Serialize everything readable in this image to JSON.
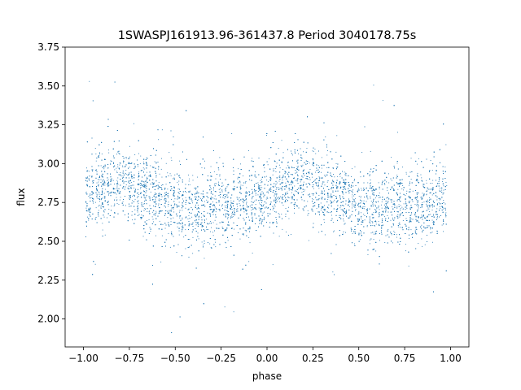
{
  "chart_data": {
    "type": "scatter",
    "title": "1SWASPJ161913.96-361437.8 Period 3040178.75s",
    "xlabel": "phase",
    "ylabel": "flux",
    "xlim": [
      -1.1,
      1.1
    ],
    "ylim": [
      1.82,
      3.75
    ],
    "xticks": [
      -1.0,
      -0.75,
      -0.5,
      -0.25,
      0.0,
      0.25,
      0.5,
      0.75,
      1.0
    ],
    "xtick_labels": [
      "−1.00",
      "−0.75",
      "−0.50",
      "−0.25",
      "0.00",
      "0.25",
      "0.50",
      "0.75",
      "1.00"
    ],
    "yticks": [
      2.0,
      2.25,
      2.5,
      2.75,
      3.0,
      3.25,
      3.5,
      3.75
    ],
    "ytick_labels": [
      "2.00",
      "2.25",
      "2.50",
      "2.75",
      "3.00",
      "3.25",
      "3.50",
      "3.75"
    ],
    "grid": false,
    "marker_color": "#1f77b4",
    "series": [
      {
        "description_of_points": "phase-folded light curve; dense vertical strips of points spanning phase -1 to 1, flux mostly 2.5-3.05, mean flux modulated with peaks near phase -0.8 and 0.2 and troughs near -0.4 and 0.6",
        "mean_flux_profile": {
          "phase": [
            -1.0,
            -0.9,
            -0.8,
            -0.7,
            -0.6,
            -0.5,
            -0.4,
            -0.3,
            -0.2,
            -0.1,
            0.0,
            0.1,
            0.2,
            0.3,
            0.4,
            0.5,
            0.6,
            0.7,
            0.8,
            0.9,
            1.0
          ],
          "flux": [
            2.8,
            2.84,
            2.9,
            2.84,
            2.78,
            2.72,
            2.69,
            2.72,
            2.74,
            2.76,
            2.8,
            2.84,
            2.9,
            2.84,
            2.78,
            2.72,
            2.69,
            2.72,
            2.74,
            2.76,
            2.8
          ]
        },
        "scatter_sigma": 0.12,
        "n_points": 9000
      }
    ]
  }
}
